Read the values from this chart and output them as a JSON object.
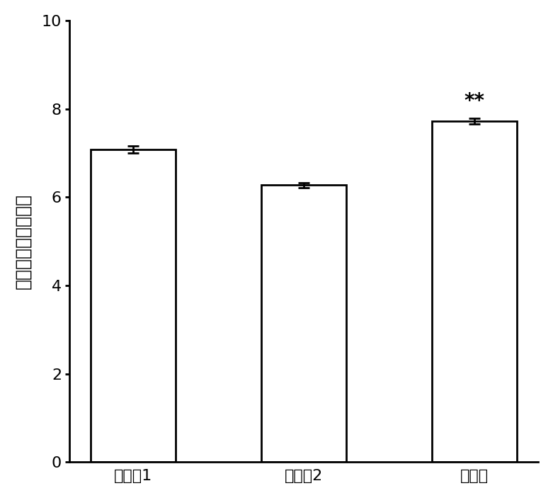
{
  "categories": [
    "对比例1",
    "对比例2",
    "试验例"
  ],
  "values": [
    7.08,
    6.27,
    7.72
  ],
  "errors": [
    0.08,
    0.06,
    0.07
  ],
  "bar_color": "#ffffff",
  "bar_edgecolor": "#000000",
  "bar_linewidth": 2.0,
  "error_color": "#000000",
  "error_linewidth": 2.0,
  "error_capsize": 6,
  "ylabel": "总多酚（毫克每克）",
  "ylim": [
    0,
    10
  ],
  "yticks": [
    0,
    2,
    4,
    6,
    8,
    10
  ],
  "significance": [
    "",
    "",
    "**"
  ],
  "sig_fontsize": 20,
  "ylabel_fontsize": 18,
  "tick_fontsize": 16,
  "xtick_fontsize": 16,
  "bar_width": 0.5,
  "background_color": "#ffffff",
  "spine_linewidth": 2.0
}
